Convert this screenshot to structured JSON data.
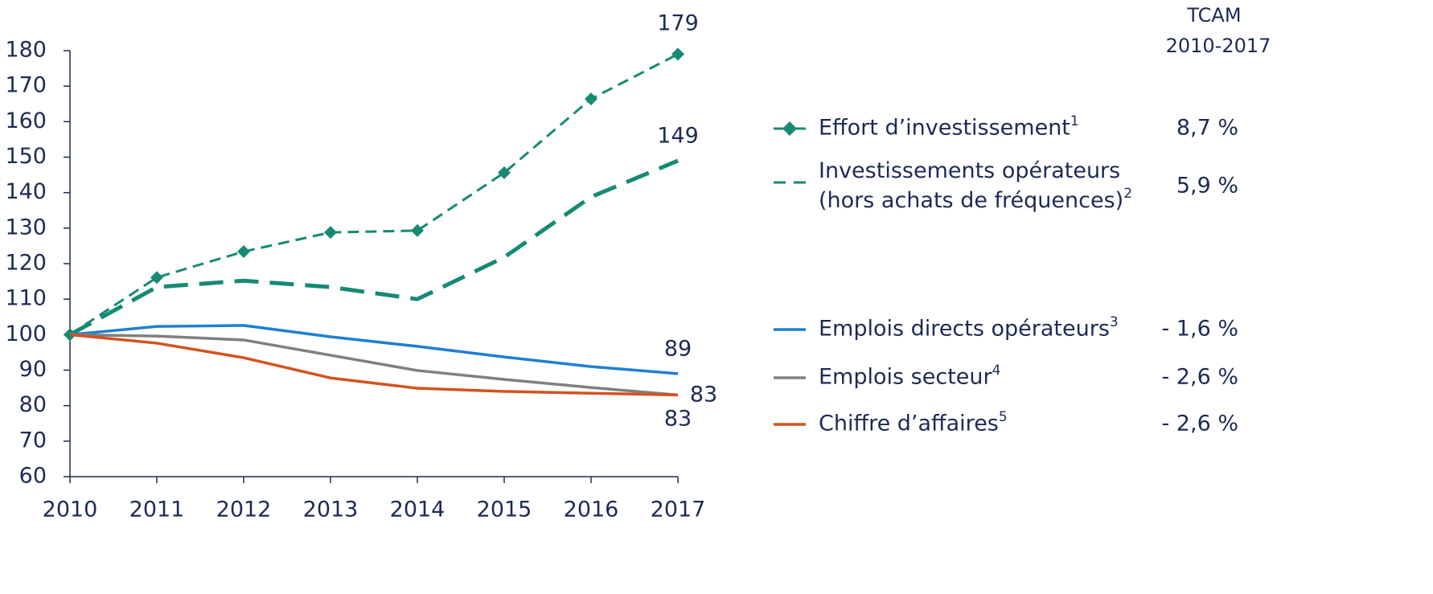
{
  "chart_data": {
    "type": "line",
    "categories": [
      "2010",
      "2011",
      "2012",
      "2013",
      "2014",
      "2015",
      "2016",
      "2017"
    ],
    "ylim": [
      60,
      180
    ],
    "yticks": [
      60,
      70,
      80,
      90,
      100,
      110,
      120,
      130,
      140,
      150,
      160,
      170,
      180
    ],
    "legend_header": [
      "TCAM",
      "2010-2017"
    ],
    "series": [
      {
        "name": "Effort d’investissement",
        "note": "1",
        "tcam": "8,7 %",
        "color": "#168a74",
        "style": "dashed-marker",
        "values": [
          100,
          116.1,
          123.4,
          128.8,
          129.3,
          145.6,
          166.4,
          179
        ]
      },
      {
        "name": "Investissements opérateurs (hors achats de fréquences)",
        "note": "2",
        "tcam": "5,9 %",
        "color": "#168a74",
        "style": "long-dash",
        "values": [
          100,
          113.4,
          115.2,
          113.4,
          110,
          121.8,
          138.8,
          149
        ]
      },
      {
        "name": "Emplois directs opérateurs",
        "note": "3",
        "tcam": "- 1,6 %",
        "color": "#1f80d0",
        "style": "solid",
        "values": [
          100,
          102.3,
          102.6,
          99.4,
          96.7,
          93.7,
          91,
          89
        ]
      },
      {
        "name": "Emplois secteur",
        "note": "4",
        "tcam": "- 2,6 %",
        "color": "#808080",
        "style": "solid",
        "values": [
          100,
          99.6,
          98.5,
          94.2,
          89.9,
          87.4,
          85.1,
          83
        ]
      },
      {
        "name": "Chiffre d’affaires",
        "note": "5",
        "tcam": "- 2,6 %",
        "color": "#d4521f",
        "style": "solid",
        "values": [
          100,
          97.6,
          93.5,
          87.8,
          84.9,
          84,
          83.5,
          83
        ]
      }
    ]
  }
}
